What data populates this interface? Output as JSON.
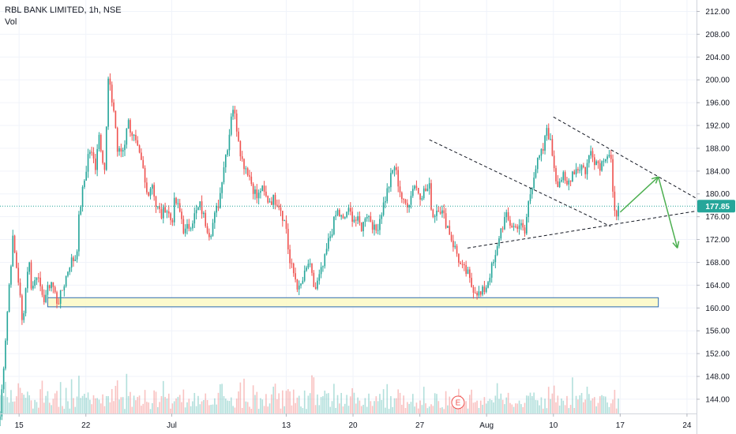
{
  "legend": {
    "symbol": "RBL BANK LIMITED, 1h, NSE",
    "volume_label": "Vol"
  },
  "colors": {
    "up": "#26a69a",
    "down": "#ef5350",
    "grid": "#f0f3fa",
    "price_line": "#26a69a",
    "support_fill": "#fcf9c4",
    "support_border": "#2f6db3",
    "trend_line": "#131722",
    "arrow": "#4caf50",
    "event_marker": "#ef5350"
  },
  "chart_data": {
    "type": "candlestick",
    "title": "RBL BANK LIMITED, 1h, NSE",
    "ylim": [
      141.5,
      214
    ],
    "y_ticks": [
      212,
      208,
      204,
      200,
      196,
      192,
      188,
      184,
      180,
      176,
      172,
      168,
      164,
      160,
      156,
      152,
      148,
      144
    ],
    "y_tick_labels": [
      "212.00",
      "208.00",
      "204.00",
      "200.00",
      "196.00",
      "192.00",
      "188.00",
      "184.00",
      "180.00",
      "176.00",
      "172.00",
      "168.00",
      "164.00",
      "160.00",
      "156.00",
      "152.00",
      "148.00",
      "144.00"
    ],
    "x_range": [
      "2020-06-13",
      "2020-08-25"
    ],
    "x_ticks": [
      {
        "date": "2020-06-15",
        "label": "15"
      },
      {
        "date": "2020-06-22",
        "label": "22"
      },
      {
        "date": "2020-07-01",
        "label": "Jul"
      },
      {
        "date": "2020-07-13",
        "label": "13"
      },
      {
        "date": "2020-07-20",
        "label": "20"
      },
      {
        "date": "2020-07-27",
        "label": "27"
      },
      {
        "date": "2020-08-03",
        "label": "Aug"
      },
      {
        "date": "2020-08-10",
        "label": "10"
      },
      {
        "date": "2020-08-17",
        "label": "17"
      },
      {
        "date": "2020-08-24",
        "label": "24"
      }
    ],
    "last_price": 177.85,
    "last_price_label": "177.85",
    "price_path": [
      [
        "2020-06-13",
        141
      ],
      [
        "2020-06-13",
        149
      ],
      [
        "2020-06-14",
        165
      ],
      [
        "2020-06-14",
        172
      ],
      [
        "2020-06-15",
        164
      ],
      [
        "2020-06-15",
        157
      ],
      [
        "2020-06-16",
        169
      ],
      [
        "2020-06-16",
        163
      ],
      [
        "2020-06-17",
        167
      ],
      [
        "2020-06-17",
        161
      ],
      [
        "2020-06-18",
        163
      ],
      [
        "2020-06-18",
        165
      ],
      [
        "2020-06-19",
        161
      ],
      [
        "2020-06-19",
        162
      ],
      [
        "2020-06-20",
        166
      ],
      [
        "2020-06-20",
        168
      ],
      [
        "2020-06-21",
        169
      ],
      [
        "2020-06-21",
        177
      ],
      [
        "2020-06-22",
        184
      ],
      [
        "2020-06-22",
        188
      ],
      [
        "2020-06-23",
        185
      ],
      [
        "2020-06-23",
        191
      ],
      [
        "2020-06-24",
        184
      ],
      [
        "2020-06-24",
        200
      ],
      [
        "2020-06-25",
        194
      ],
      [
        "2020-06-25",
        187
      ],
      [
        "2020-06-26",
        188
      ],
      [
        "2020-06-26",
        193
      ],
      [
        "2020-06-27",
        190
      ],
      [
        "2020-06-28",
        184
      ],
      [
        "2020-06-28",
        180
      ],
      [
        "2020-06-29",
        182
      ],
      [
        "2020-06-29",
        178
      ],
      [
        "2020-06-30",
        176
      ],
      [
        "2020-06-30",
        178
      ],
      [
        "2020-07-01",
        175
      ],
      [
        "2020-07-01",
        179
      ],
      [
        "2020-07-02",
        176
      ],
      [
        "2020-07-02",
        173
      ],
      [
        "2020-07-03",
        175
      ],
      [
        "2020-07-04",
        178
      ],
      [
        "2020-07-04",
        176
      ],
      [
        "2020-07-05",
        173
      ],
      [
        "2020-07-05",
        175
      ],
      [
        "2020-07-06",
        179
      ],
      [
        "2020-07-06",
        184
      ],
      [
        "2020-07-07",
        190
      ],
      [
        "2020-07-07",
        196
      ],
      [
        "2020-07-08",
        190
      ],
      [
        "2020-07-08",
        186
      ],
      [
        "2020-07-09",
        184
      ],
      [
        "2020-07-09",
        182
      ],
      [
        "2020-07-10",
        179
      ],
      [
        "2020-07-10",
        181
      ],
      [
        "2020-07-11",
        179
      ],
      [
        "2020-07-12",
        179
      ],
      [
        "2020-07-12",
        178
      ],
      [
        "2020-07-13",
        174
      ],
      [
        "2020-07-13",
        168
      ],
      [
        "2020-07-14",
        165
      ],
      [
        "2020-07-14",
        163
      ],
      [
        "2020-07-15",
        166
      ],
      [
        "2020-07-15",
        168
      ],
      [
        "2020-07-16",
        163
      ],
      [
        "2020-07-17",
        168
      ],
      [
        "2020-07-17",
        171
      ],
      [
        "2020-07-18",
        175
      ],
      [
        "2020-07-18",
        177
      ],
      [
        "2020-07-19",
        175
      ],
      [
        "2020-07-19",
        177
      ],
      [
        "2020-07-20",
        176
      ],
      [
        "2020-07-21",
        174
      ],
      [
        "2020-07-21",
        177
      ],
      [
        "2020-07-22",
        175
      ],
      [
        "2020-07-22",
        173
      ],
      [
        "2020-07-23",
        177
      ],
      [
        "2020-07-23",
        179
      ],
      [
        "2020-07-24",
        183
      ],
      [
        "2020-07-24",
        185
      ],
      [
        "2020-07-25",
        180
      ],
      [
        "2020-07-25",
        178
      ],
      [
        "2020-07-26",
        179
      ],
      [
        "2020-07-26",
        182
      ],
      [
        "2020-07-27",
        180
      ],
      [
        "2020-07-28",
        181
      ],
      [
        "2020-07-28",
        176
      ],
      [
        "2020-07-29",
        178
      ],
      [
        "2020-07-30",
        174
      ],
      [
        "2020-07-30",
        172
      ],
      [
        "2020-07-31",
        169
      ],
      [
        "2020-07-31",
        167
      ],
      [
        "2020-08-01",
        166
      ],
      [
        "2020-08-01",
        164
      ],
      [
        "2020-08-02",
        163
      ],
      [
        "2020-08-02",
        162
      ],
      [
        "2020-08-03",
        164
      ],
      [
        "2020-08-03",
        166
      ],
      [
        "2020-08-04",
        169
      ],
      [
        "2020-08-04",
        173
      ],
      [
        "2020-08-05",
        176
      ],
      [
        "2020-08-05",
        175
      ],
      [
        "2020-08-06",
        174
      ],
      [
        "2020-08-06",
        175
      ],
      [
        "2020-08-07",
        173
      ],
      [
        "2020-08-07",
        178
      ],
      [
        "2020-08-08",
        184
      ],
      [
        "2020-08-09",
        188
      ],
      [
        "2020-08-09",
        192
      ],
      [
        "2020-08-10",
        186
      ],
      [
        "2020-08-10",
        182
      ],
      [
        "2020-08-11",
        183
      ],
      [
        "2020-08-11",
        181
      ],
      [
        "2020-08-12",
        184
      ],
      [
        "2020-08-13",
        185
      ],
      [
        "2020-08-13",
        184
      ],
      [
        "2020-08-14",
        188
      ],
      [
        "2020-08-14",
        186
      ],
      [
        "2020-08-15",
        185
      ],
      [
        "2020-08-15",
        187
      ],
      [
        "2020-08-16",
        187
      ],
      [
        "2020-08-16",
        176
      ],
      [
        "2020-08-17",
        177.85
      ]
    ],
    "volume_ylim": [
      0,
      100
    ],
    "annotations": {
      "support_zone": {
        "x_start": "2020-06-18",
        "x_end": "2020-08-21",
        "y_low": 160.2,
        "y_high": 161.8
      },
      "trend_lines": [
        {
          "from": [
            "2020-07-28",
            189.5
          ],
          "to": [
            "2020-08-16",
            174.3
          ]
        },
        {
          "from": [
            "2020-08-10",
            193.5
          ],
          "to": [
            "2020-08-25",
            179.2
          ]
        },
        {
          "from": [
            "2020-08-01",
            170.5
          ],
          "to": [
            "2020-08-25",
            177
          ]
        }
      ],
      "forecast_arrows": [
        {
          "from": [
            "2020-08-17",
            176.8
          ],
          "to": [
            "2020-08-21",
            183
          ]
        },
        {
          "from": [
            "2020-08-21",
            183
          ],
          "to": [
            "2020-08-23",
            170.5
          ]
        }
      ],
      "event_marker": {
        "date": "2020-07-31",
        "label": "E"
      }
    }
  }
}
